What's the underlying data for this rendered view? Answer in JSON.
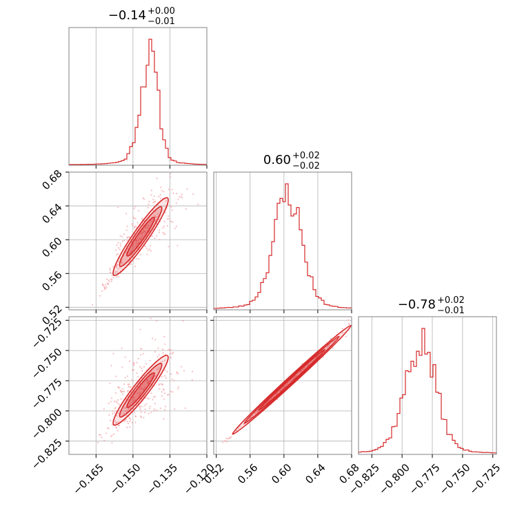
{
  "colors": {
    "accent": "#d62728",
    "scatter": "#f4a3a6",
    "grid": "#b0b0b0",
    "frame": "#808080"
  },
  "titles": [
    {
      "value": "−0.14",
      "plus": "+0.00",
      "minus": "−0.01"
    },
    {
      "value": "0.60",
      "plus": "+0.02",
      "minus": "−0.02"
    },
    {
      "value": "−0.78",
      "plus": "+0.02",
      "minus": "−0.01"
    }
  ],
  "chart_data": {
    "type": "corner",
    "parameters": [
      {
        "range": [
          -0.176,
          -0.12
        ],
        "ticks": [
          -0.165,
          -0.15,
          -0.135,
          -0.12
        ],
        "tick_labels": [
          "−0.165",
          "−0.150",
          "−0.135",
          "−0.120"
        ]
      },
      {
        "range": [
          0.517,
          0.68
        ],
        "ticks": [
          0.52,
          0.56,
          0.6,
          0.64,
          0.68
        ],
        "tick_labels": [
          "0.52",
          "0.56",
          "0.60",
          "0.64",
          "0.68"
        ]
      },
      {
        "range": [
          -0.836,
          -0.722
        ],
        "ticks": [
          -0.825,
          -0.8,
          -0.775,
          -0.75,
          -0.725
        ],
        "tick_labels": [
          "−0.825",
          "−0.800",
          "−0.775",
          "−0.750",
          "−0.725"
        ]
      }
    ],
    "hist_bins": 50,
    "histograms": [
      {
        "peak": -0.143,
        "widthL": 0.0038,
        "widthR": 0.0032,
        "noise_seed": 11
      },
      {
        "peak": 0.605,
        "widthL": 0.017,
        "widthR": 0.016,
        "noise_seed": 23
      },
      {
        "peak": -0.784,
        "widthL": 0.013,
        "widthR": 0.012,
        "noise_seed": 37
      }
    ],
    "correlations": [
      {
        "row": 1,
        "col": 0,
        "line": [
          [
            -0.158,
            0.557
          ],
          [
            -0.137,
            0.645
          ]
        ],
        "spread": 0.004
      },
      {
        "row": 2,
        "col": 0,
        "line": [
          [
            -0.158,
            -0.812
          ],
          [
            -0.137,
            -0.757
          ]
        ],
        "spread": 0.0045
      },
      {
        "row": 2,
        "col": 1,
        "line": [
          [
            0.535,
            -0.822
          ],
          [
            0.675,
            -0.732
          ]
        ],
        "spread": 0.0012
      }
    ],
    "grid": true
  }
}
